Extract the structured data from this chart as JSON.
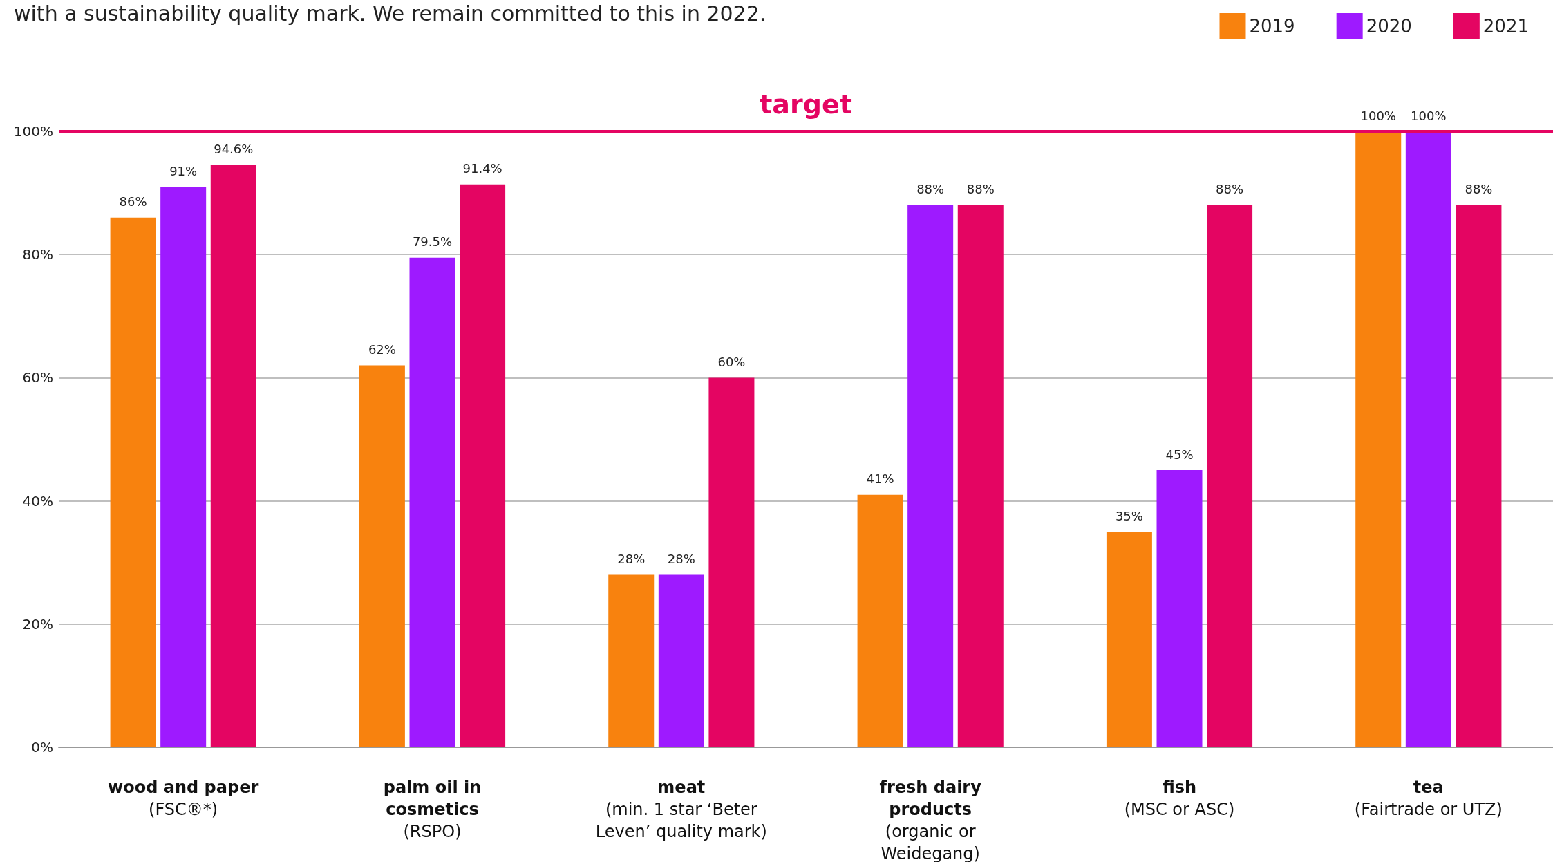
{
  "chart_data": {
    "type": "bar",
    "annotations": [
      "with a sustainability quality mark. We remain committed to this in 2022."
    ],
    "categories": [
      "wood and paper (FSC®*)",
      "palm oil in cosmetics (RSPO)",
      "meat (min. 1 star ‘Beter Leven’ quality mark)",
      "fresh dairy products (organic or Weidegang)",
      "fish (MSC or ASC)",
      "tea (Fairtrade or UTZ)"
    ],
    "series": [
      {
        "name": "2019",
        "color": "#f8820e",
        "values": [
          86,
          62,
          28,
          41,
          35,
          100
        ],
        "value_labels": [
          "86%",
          "62%",
          "28%",
          "41%",
          "35%",
          "100%"
        ]
      },
      {
        "name": "2020",
        "color": "#9e1aff",
        "values": [
          91,
          79.5,
          28,
          88,
          45,
          100
        ],
        "value_labels": [
          "91%",
          "79.5%",
          "28%",
          "88%",
          "45%",
          "100%"
        ]
      },
      {
        "name": "2021",
        "color": "#e40562",
        "values": [
          94.6,
          91.4,
          60,
          88,
          88,
          88
        ],
        "value_labels": [
          "94.6%",
          "91.4%",
          "60%",
          "88%",
          "88%",
          "88%"
        ]
      }
    ],
    "ylim": [
      0,
      100
    ],
    "yticks": [
      {
        "value": 0,
        "label": "0%"
      },
      {
        "value": 20,
        "label": "20%"
      },
      {
        "value": 40,
        "label": "40%"
      },
      {
        "value": 60,
        "label": "60%"
      },
      {
        "value": 80,
        "label": "80%"
      },
      {
        "value": 100,
        "label": "100%"
      }
    ],
    "ref_lines": [
      {
        "axis": "y",
        "value": 100,
        "label": "target",
        "color": "#e40562"
      }
    ],
    "grid": "y",
    "legend": "top right"
  }
}
